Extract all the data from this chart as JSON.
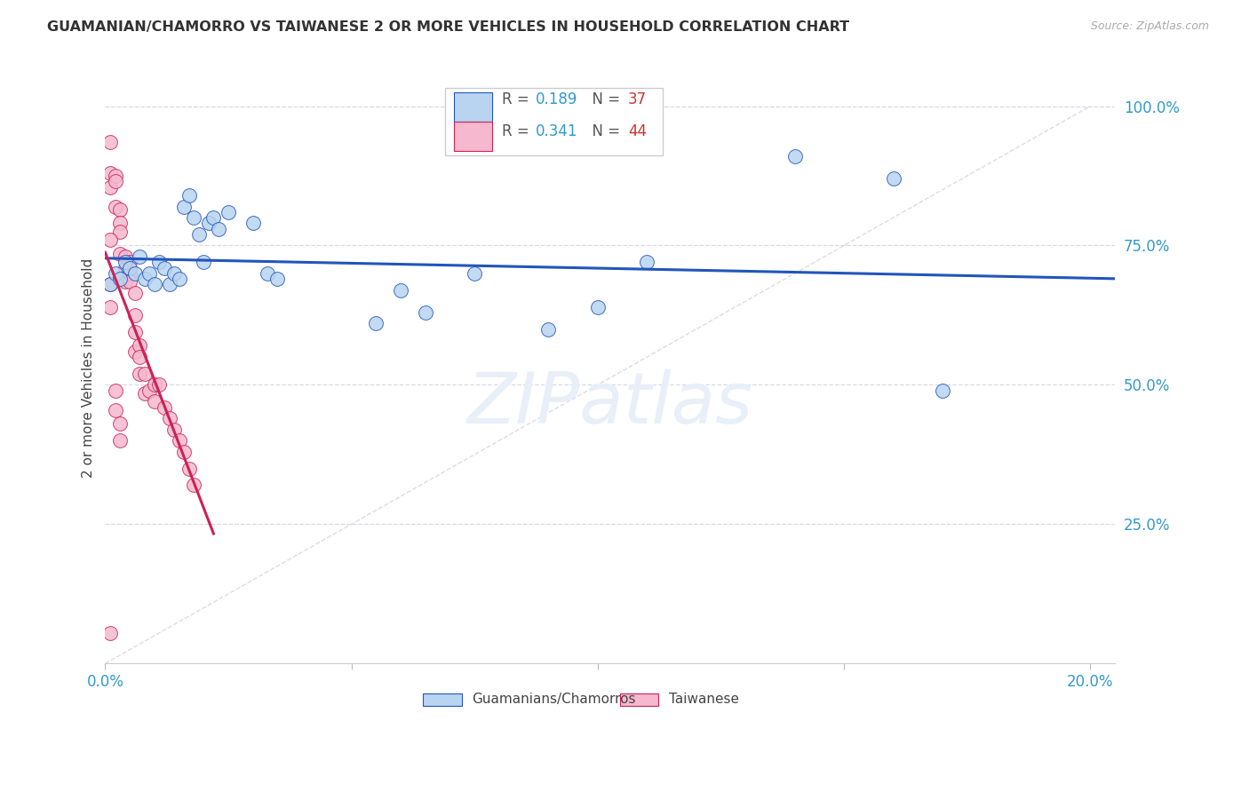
{
  "title": "GUAMANIAN/CHAMORRO VS TAIWANESE 2 OR MORE VEHICLES IN HOUSEHOLD CORRELATION CHART",
  "source": "Source: ZipAtlas.com",
  "ylabel": "2 or more Vehicles in Household",
  "legend_label1": "Guamanians/Chamorros",
  "legend_label2": "Taiwanese",
  "R1": 0.189,
  "N1": 37,
  "R2": 0.341,
  "N2": 44,
  "color1": "#b8d4f0",
  "color2": "#f5b8ce",
  "line_color1": "#2255bb",
  "line_color2": "#cc2255",
  "diag_color": "#d8d8e8",
  "xlim_min": 0.0,
  "xlim_max": 0.205,
  "ylim_min": 0.0,
  "ylim_max": 1.06,
  "background_color": "#ffffff",
  "grid_color": "#d8d8e8",
  "blue_x": [
    0.001,
    0.002,
    0.003,
    0.004,
    0.005,
    0.006,
    0.007,
    0.008,
    0.009,
    0.01,
    0.011,
    0.012,
    0.013,
    0.014,
    0.015,
    0.016,
    0.017,
    0.018,
    0.019,
    0.02,
    0.021,
    0.022,
    0.023,
    0.025,
    0.03,
    0.033,
    0.035,
    0.055,
    0.06,
    0.065,
    0.075,
    0.09,
    0.1,
    0.11,
    0.14,
    0.16,
    0.17
  ],
  "blue_y": [
    0.68,
    0.7,
    0.69,
    0.72,
    0.71,
    0.7,
    0.73,
    0.69,
    0.7,
    0.68,
    0.72,
    0.71,
    0.68,
    0.7,
    0.69,
    0.82,
    0.84,
    0.8,
    0.77,
    0.72,
    0.79,
    0.8,
    0.78,
    0.81,
    0.79,
    0.7,
    0.69,
    0.61,
    0.67,
    0.63,
    0.7,
    0.6,
    0.64,
    0.72,
    0.91,
    0.87,
    0.49
  ],
  "pink_x": [
    0.001,
    0.001,
    0.001,
    0.002,
    0.002,
    0.002,
    0.003,
    0.003,
    0.003,
    0.003,
    0.004,
    0.004,
    0.004,
    0.005,
    0.005,
    0.005,
    0.006,
    0.006,
    0.006,
    0.006,
    0.007,
    0.007,
    0.007,
    0.008,
    0.008,
    0.009,
    0.01,
    0.01,
    0.011,
    0.012,
    0.013,
    0.014,
    0.015,
    0.016,
    0.017,
    0.018,
    0.001,
    0.001,
    0.001,
    0.002,
    0.002,
    0.003,
    0.003,
    0.001
  ],
  "pink_y": [
    0.935,
    0.88,
    0.855,
    0.875,
    0.865,
    0.82,
    0.815,
    0.79,
    0.775,
    0.735,
    0.73,
    0.71,
    0.685,
    0.72,
    0.7,
    0.685,
    0.665,
    0.625,
    0.595,
    0.56,
    0.57,
    0.55,
    0.52,
    0.52,
    0.485,
    0.49,
    0.5,
    0.47,
    0.5,
    0.46,
    0.44,
    0.42,
    0.4,
    0.38,
    0.35,
    0.32,
    0.76,
    0.68,
    0.64,
    0.49,
    0.455,
    0.43,
    0.4,
    0.055
  ]
}
